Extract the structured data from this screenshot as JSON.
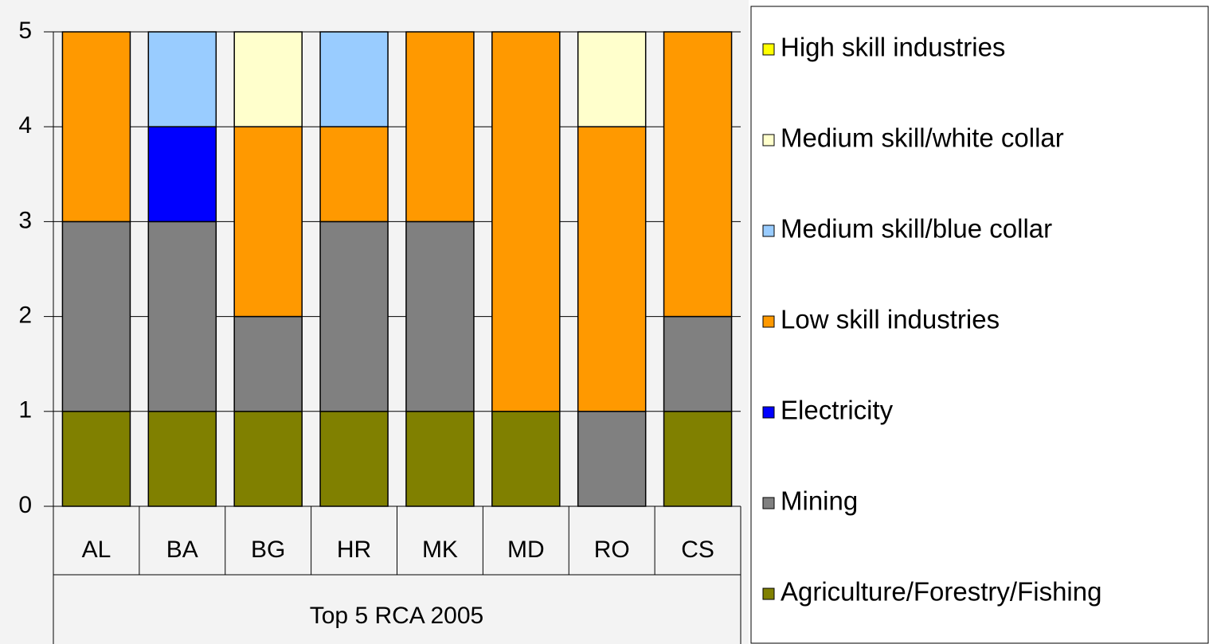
{
  "chart_data": {
    "type": "stacked_bar",
    "xlabel": "Top 5 RCA 2005",
    "categories": [
      "AL",
      "BA",
      "BG",
      "HR",
      "MK",
      "MD",
      "RO",
      "CS"
    ],
    "series": [
      {
        "name": "Agriculture/Forestry/Fishing",
        "color": "#808000",
        "values": [
          1,
          1,
          1,
          1,
          1,
          1,
          0,
          1
        ]
      },
      {
        "name": "Mining",
        "color": "#808080",
        "values": [
          2,
          2,
          1,
          2,
          2,
          0,
          1,
          1
        ]
      },
      {
        "name": "Electricity",
        "color": "#0000ff",
        "values": [
          0,
          1,
          0,
          0,
          0,
          0,
          0,
          0
        ]
      },
      {
        "name": "Low skill industries",
        "color": "#ff9900",
        "values": [
          2,
          0,
          2,
          1,
          2,
          4,
          3,
          3
        ]
      },
      {
        "name": "Medium skill/blue collar",
        "color": "#99ccff",
        "values": [
          0,
          1,
          0,
          1,
          0,
          0,
          0,
          0
        ]
      },
      {
        "name": "Medium skill/white collar",
        "color": "#ffffcc",
        "values": [
          0,
          0,
          1,
          0,
          0,
          0,
          1,
          0
        ]
      },
      {
        "name": "High skill industries",
        "color": "#ffff00",
        "values": [
          0,
          0,
          0,
          0,
          0,
          0,
          0,
          0
        ]
      }
    ],
    "ylim": [
      0,
      5
    ],
    "yticks": [
      0,
      1,
      2,
      3,
      4,
      5
    ],
    "grid": true,
    "legend": "right"
  }
}
